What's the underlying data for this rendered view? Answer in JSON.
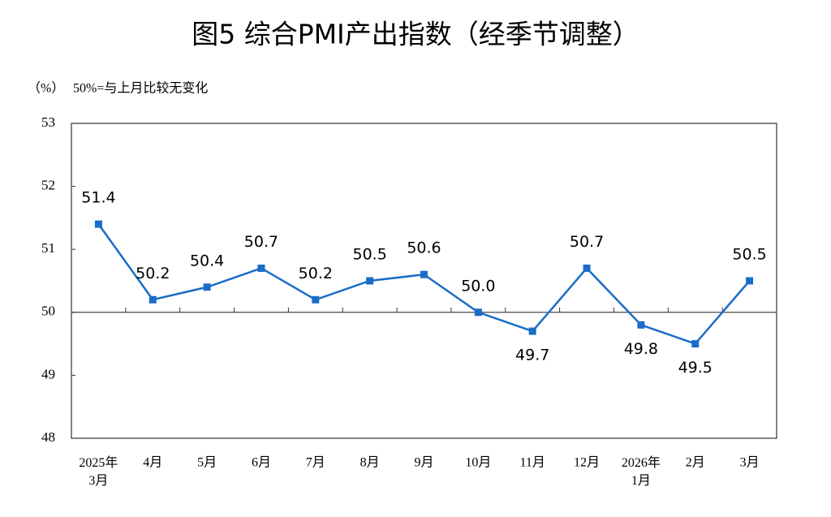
{
  "chart_data": {
    "type": "line",
    "title": "图5  综合PMI产出指数（经季节调整）",
    "y_label": "（%）",
    "annotation": "50%=与上月比较无变化",
    "categories": [
      "2025年3月",
      "4月",
      "5月",
      "6月",
      "7月",
      "8月",
      "9月",
      "10月",
      "11月",
      "12月",
      "2026年1月",
      "2月",
      "3月"
    ],
    "values": [
      51.4,
      50.2,
      50.4,
      50.7,
      50.2,
      50.5,
      50.6,
      50.0,
      49.7,
      50.7,
      49.8,
      49.5,
      50.5
    ],
    "value_labels": [
      "51.4",
      "50.2",
      "50.4",
      "50.7",
      "50.2",
      "50.5",
      "50.6",
      "50.0",
      "49.7",
      "50.7",
      "49.8",
      "49.5",
      "50.5"
    ],
    "color": "#1a6cc8",
    "reference_line": 50,
    "ylim": [
      48,
      53
    ],
    "yticks": [
      48,
      49,
      50,
      51,
      52,
      53
    ]
  }
}
